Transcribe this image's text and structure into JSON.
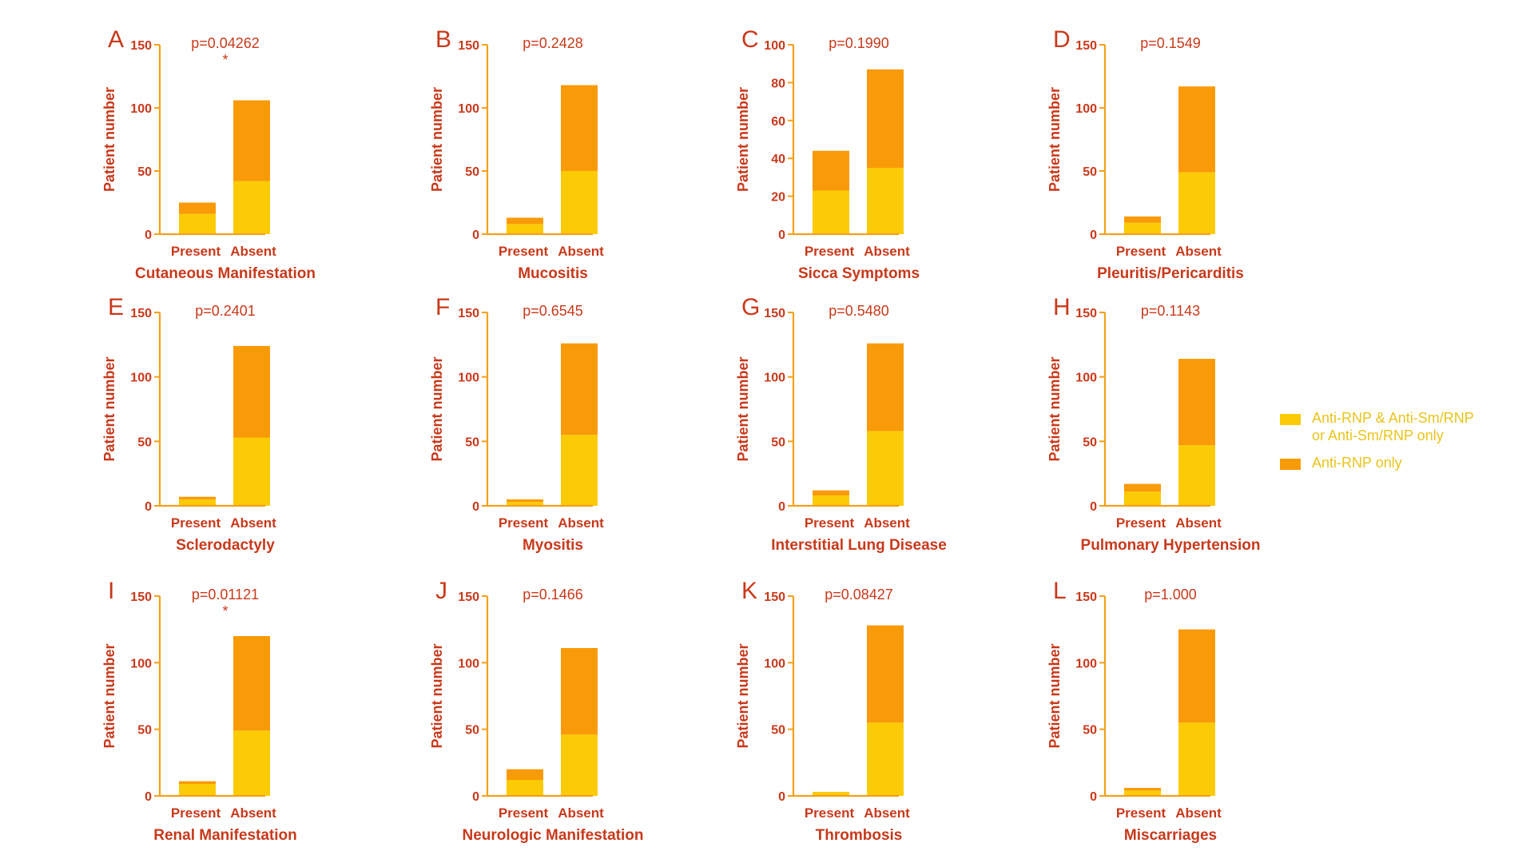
{
  "colors": {
    "combined": "#FCCB05",
    "rnp_only": "#F99A08",
    "axis": "#F4A01A",
    "text": "#C8391B",
    "legend_text": "#E9C41C"
  },
  "legend": {
    "items": [
      {
        "label_line1": "Anti-RNP & Anti-Sm/RNP",
        "label_line2": "or Anti-Sm/RNP only",
        "color_key": "combined"
      },
      {
        "label_line1": "Anti-RNP only",
        "label_line2": "",
        "color_key": "rnp_only"
      }
    ]
  },
  "chart_data": [
    {
      "type": "bar",
      "stacked": true,
      "panel": "A",
      "title": "Cutaneous Manifestation",
      "pvalue": "p=0.04262",
      "significance": "*",
      "ylabel": "Patient number",
      "categories": [
        "Present",
        "Absent"
      ],
      "ylim": [
        0,
        150
      ],
      "yticks": [
        0,
        50,
        100,
        150
      ],
      "series": [
        {
          "name": "Anti-RNP & Anti-Sm/RNP or Anti-Sm/RNP only",
          "values": [
            16,
            42
          ]
        },
        {
          "name": "Anti-RNP only",
          "values": [
            9,
            64
          ]
        }
      ]
    },
    {
      "type": "bar",
      "stacked": true,
      "panel": "B",
      "title": "Mucositis",
      "pvalue": "p=0.2428",
      "significance": "",
      "ylabel": "Patient number",
      "categories": [
        "Present",
        "Absent"
      ],
      "ylim": [
        0,
        150
      ],
      "yticks": [
        0,
        50,
        100,
        150
      ],
      "series": [
        {
          "name": "Anti-RNP & Anti-Sm/RNP or Anti-Sm/RNP only",
          "values": [
            8,
            50
          ]
        },
        {
          "name": "Anti-RNP only",
          "values": [
            5,
            68
          ]
        }
      ]
    },
    {
      "type": "bar",
      "stacked": true,
      "panel": "C",
      "title": "Sicca Symptoms",
      "pvalue": "p=0.1990",
      "significance": "",
      "ylabel": "Patient number",
      "categories": [
        "Present",
        "Absent"
      ],
      "ylim": [
        0,
        100
      ],
      "yticks": [
        0,
        20,
        40,
        60,
        80,
        100
      ],
      "series": [
        {
          "name": "Anti-RNP & Anti-Sm/RNP or Anti-Sm/RNP only",
          "values": [
            23,
            35
          ]
        },
        {
          "name": "Anti-RNP only",
          "values": [
            21,
            52
          ]
        }
      ]
    },
    {
      "type": "bar",
      "stacked": true,
      "panel": "D",
      "title": "Pleuritis/Pericarditis",
      "pvalue": "p=0.1549",
      "significance": "",
      "ylabel": "Patient number",
      "categories": [
        "Present",
        "Absent"
      ],
      "ylim": [
        0,
        150
      ],
      "yticks": [
        0,
        50,
        100,
        150
      ],
      "series": [
        {
          "name": "Anti-RNP & Anti-Sm/RNP or Anti-Sm/RNP only",
          "values": [
            9,
            49
          ]
        },
        {
          "name": "Anti-RNP only",
          "values": [
            5,
            68
          ]
        }
      ]
    },
    {
      "type": "bar",
      "stacked": true,
      "panel": "E",
      "title": "Sclerodactyly",
      "pvalue": "p=0.2401",
      "significance": "",
      "ylabel": "Patient number",
      "categories": [
        "Present",
        "Absent"
      ],
      "ylim": [
        0,
        150
      ],
      "yticks": [
        0,
        50,
        100,
        150
      ],
      "series": [
        {
          "name": "Anti-RNP & Anti-Sm/RNP or Anti-Sm/RNP only",
          "values": [
            5,
            53
          ]
        },
        {
          "name": "Anti-RNP only",
          "values": [
            2,
            71
          ]
        }
      ]
    },
    {
      "type": "bar",
      "stacked": true,
      "panel": "F",
      "title": "Myositis",
      "pvalue": "p=0.6545",
      "significance": "",
      "ylabel": "Patient number",
      "categories": [
        "Present",
        "Absent"
      ],
      "ylim": [
        0,
        150
      ],
      "yticks": [
        0,
        50,
        100,
        150
      ],
      "series": [
        {
          "name": "Anti-RNP & Anti-Sm/RNP or Anti-Sm/RNP only",
          "values": [
            3,
            55
          ]
        },
        {
          "name": "Anti-RNP only",
          "values": [
            2,
            71
          ]
        }
      ]
    },
    {
      "type": "bar",
      "stacked": true,
      "panel": "G",
      "title": "Interstitial Lung Disease",
      "pvalue": "p=0.5480",
      "significance": "",
      "ylabel": "Patient number",
      "categories": [
        "Present",
        "Absent"
      ],
      "ylim": [
        0,
        150
      ],
      "yticks": [
        0,
        50,
        100,
        150
      ],
      "series": [
        {
          "name": "Anti-RNP & Anti-Sm/RNP or Anti-Sm/RNP only",
          "values": [
            8,
            58
          ]
        },
        {
          "name": "Anti-RNP only",
          "values": [
            4,
            68
          ]
        }
      ]
    },
    {
      "type": "bar",
      "stacked": true,
      "panel": "H",
      "title": "Pulmonary Hypertension",
      "pvalue": "p=0.1143",
      "significance": "",
      "ylabel": "Patient number",
      "categories": [
        "Present",
        "Absent"
      ],
      "ylim": [
        0,
        150
      ],
      "yticks": [
        0,
        50,
        100,
        150
      ],
      "series": [
        {
          "name": "Anti-RNP & Anti-Sm/RNP or Anti-Sm/RNP only",
          "values": [
            11,
            47
          ]
        },
        {
          "name": "Anti-RNP only",
          "values": [
            6,
            67
          ]
        }
      ]
    },
    {
      "type": "bar",
      "stacked": true,
      "panel": "I",
      "title": "Renal Manifestation",
      "pvalue": "p=0.01121",
      "significance": "*",
      "ylabel": "Patient number",
      "categories": [
        "Present",
        "Absent"
      ],
      "ylim": [
        0,
        150
      ],
      "yticks": [
        0,
        50,
        100,
        150
      ],
      "series": [
        {
          "name": "Anti-RNP & Anti-Sm/RNP or Anti-Sm/RNP only",
          "values": [
            9,
            49
          ]
        },
        {
          "name": "Anti-RNP only",
          "values": [
            2,
            71
          ]
        }
      ]
    },
    {
      "type": "bar",
      "stacked": true,
      "panel": "J",
      "title": "Neurologic Manifestation",
      "pvalue": "p=0.1466",
      "significance": "",
      "ylabel": "Patient number",
      "categories": [
        "Present",
        "Absent"
      ],
      "ylim": [
        0,
        150
      ],
      "yticks": [
        0,
        50,
        100,
        150
      ],
      "series": [
        {
          "name": "Anti-RNP & Anti-Sm/RNP or Anti-Sm/RNP only",
          "values": [
            12,
            46
          ]
        },
        {
          "name": "Anti-RNP only",
          "values": [
            8,
            65
          ]
        }
      ]
    },
    {
      "type": "bar",
      "stacked": true,
      "panel": "K",
      "title": "Thrombosis",
      "pvalue": "p=0.08427",
      "significance": "",
      "ylabel": "Patient number",
      "categories": [
        "Present",
        "Absent"
      ],
      "ylim": [
        0,
        150
      ],
      "yticks": [
        0,
        50,
        100,
        150
      ],
      "series": [
        {
          "name": "Anti-RNP & Anti-Sm/RNP or Anti-Sm/RNP only",
          "values": [
            3,
            55
          ]
        },
        {
          "name": "Anti-RNP only",
          "values": [
            0,
            73
          ]
        }
      ]
    },
    {
      "type": "bar",
      "stacked": true,
      "panel": "L",
      "title": "Miscarriages",
      "pvalue": "p=1.000",
      "significance": "",
      "ylabel": "Patient number",
      "categories": [
        "Present",
        "Absent"
      ],
      "ylim": [
        0,
        150
      ],
      "yticks": [
        0,
        50,
        100,
        150
      ],
      "series": [
        {
          "name": "Anti-RNP & Anti-Sm/RNP or Anti-Sm/RNP only",
          "values": [
            4,
            55
          ]
        },
        {
          "name": "Anti-RNP only",
          "values": [
            2,
            70
          ]
        }
      ]
    }
  ]
}
